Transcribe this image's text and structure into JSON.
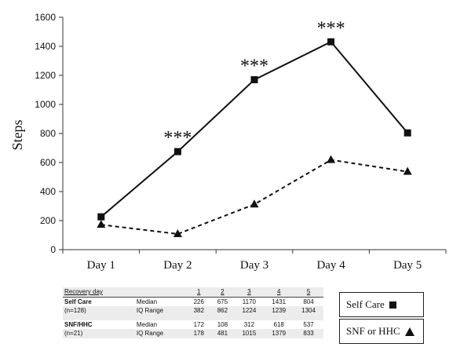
{
  "chart_data": {
    "type": "line",
    "categories": [
      "Day 1",
      "Day 2",
      "Day 3",
      "Day 4",
      "Day 5"
    ],
    "ylabel": "Steps",
    "xlabel": "",
    "ylim": [
      0,
      1600
    ],
    "yticks": [
      0,
      200,
      400,
      600,
      800,
      1000,
      1200,
      1400,
      1600
    ],
    "grid": false,
    "series": [
      {
        "name": "Self Care",
        "values": [
          226,
          675,
          1170,
          1431,
          804
        ],
        "style": "solid",
        "marker": "square",
        "color": "#111111"
      },
      {
        "name": "SNF or HHC",
        "values": [
          172,
          108,
          312,
          618,
          537
        ],
        "style": "dashed",
        "marker": "triangle",
        "color": "#111111"
      }
    ],
    "annotations": [
      {
        "category": "Day 2",
        "text": "***"
      },
      {
        "category": "Day 3",
        "text": "***"
      },
      {
        "category": "Day 4",
        "text": "***"
      }
    ]
  },
  "table": {
    "header": "Recovery day",
    "days": [
      "1",
      "2",
      "3",
      "4",
      "5"
    ],
    "groups": [
      {
        "name": "Self Care",
        "n": "(n=128)",
        "rows": [
          {
            "label": "Median",
            "values": [
              "226",
              "675",
              "1170",
              "1431",
              "804"
            ]
          },
          {
            "label": "IQ Range",
            "values": [
              "382",
              "862",
              "1224",
              "1239",
              "1304"
            ]
          }
        ]
      },
      {
        "name": "SNF/HHC",
        "n": "(n=21)",
        "rows": [
          {
            "label": "Median",
            "values": [
              "172",
              "108",
              "312",
              "618",
              "537"
            ]
          },
          {
            "label": "IQ Range",
            "values": [
              "178",
              "481",
              "1015",
              "1379",
              "833"
            ]
          }
        ]
      }
    ]
  },
  "legend": {
    "self_care": "Self Care",
    "snf": "SNF or HHC"
  }
}
